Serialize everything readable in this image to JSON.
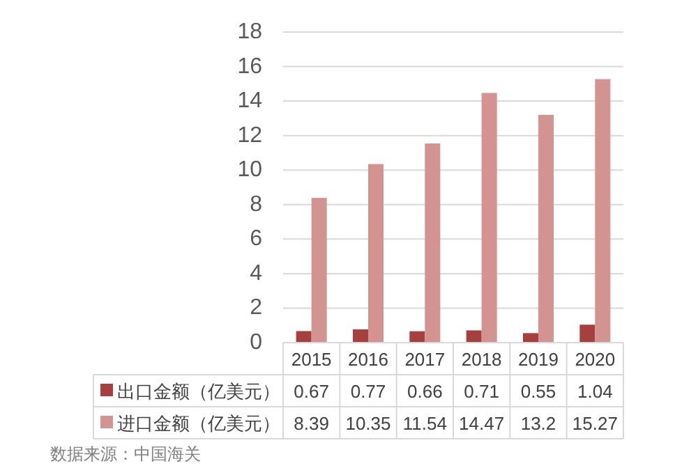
{
  "chart_data": {
    "type": "bar",
    "categories": [
      "2015",
      "2016",
      "2017",
      "2018",
      "2019",
      "2020"
    ],
    "series": [
      {
        "name": "出口金额（亿美元）",
        "color": "#a5403f",
        "values": [
          0.67,
          0.77,
          0.66,
          0.71,
          0.55,
          1.04
        ]
      },
      {
        "name": "进口金额（亿美元）",
        "color": "#d39391",
        "values": [
          8.39,
          10.35,
          11.54,
          14.47,
          13.2,
          15.27
        ]
      }
    ],
    "ylim": [
      0,
      18
    ],
    "yticks": [
      0,
      2,
      4,
      6,
      8,
      10,
      12,
      14,
      16,
      18
    ],
    "grid": "y",
    "legend": "bottom",
    "data_labels": true,
    "annotations": [
      "数据来源：中国海关"
    ]
  }
}
